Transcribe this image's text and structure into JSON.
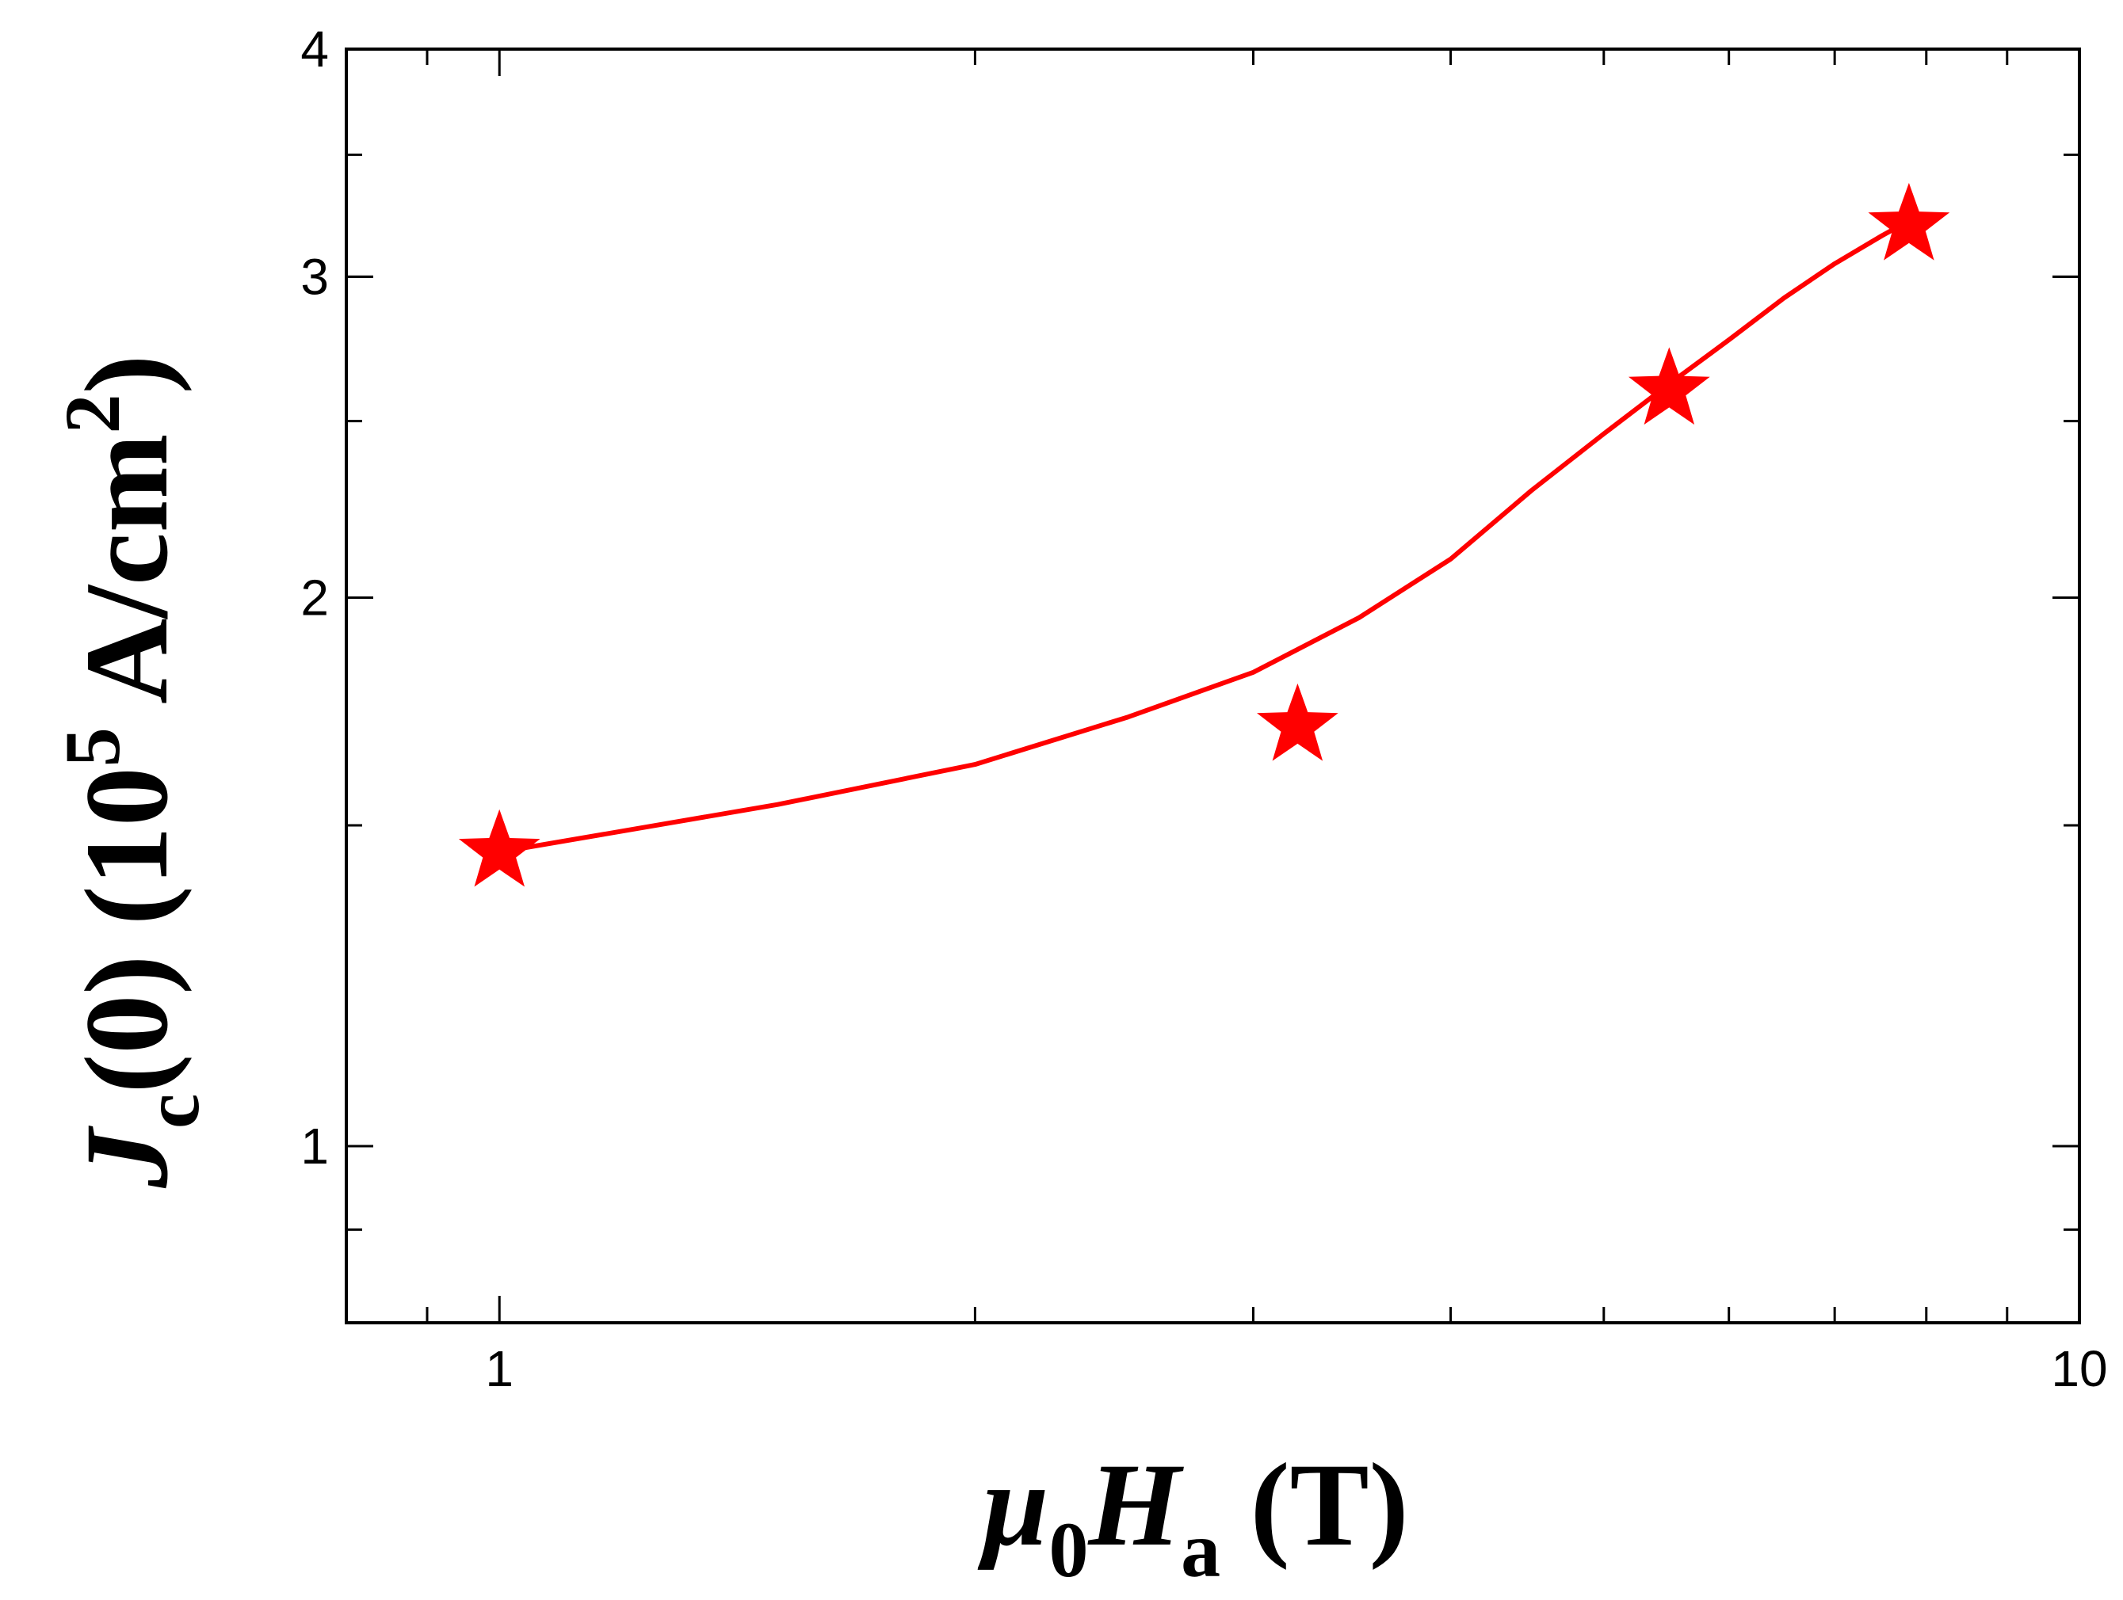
{
  "chart_data": {
    "type": "line",
    "x_scale": "log",
    "y_scale": "log",
    "xlim": [
      0.8,
      10
    ],
    "ylim": [
      0.8,
      4
    ],
    "x_ticks": [
      {
        "value": 1,
        "label": "1"
      },
      {
        "value": 10,
        "label": "10"
      }
    ],
    "y_ticks": [
      {
        "value": 1,
        "label": "1"
      },
      {
        "value": 2,
        "label": "2"
      },
      {
        "value": 3,
        "label": "3"
      },
      {
        "value": 4,
        "label": "4"
      }
    ],
    "xlabel": {
      "main": "μ",
      "sub0": "0",
      "italic": "H",
      "sub1": "a",
      "tail": " (T)"
    },
    "ylabel": {
      "italic": "J",
      "sub": "c",
      "middle": "(0)  (10",
      "sup1": "5",
      "unit": " A/cm",
      "sup2": "2",
      "end": ")"
    },
    "grid": false,
    "series": [
      {
        "marker": "star",
        "color": "#ff0000",
        "points": [
          {
            "x": 1.0,
            "y": 1.45
          },
          {
            "x": 3.2,
            "y": 1.7
          },
          {
            "x": 5.5,
            "y": 2.6
          },
          {
            "x": 7.8,
            "y": 3.2
          }
        ],
        "fit_curve": [
          {
            "x": 1.0,
            "y": 1.45
          },
          {
            "x": 1.5,
            "y": 1.54
          },
          {
            "x": 2.0,
            "y": 1.62
          },
          {
            "x": 2.5,
            "y": 1.72
          },
          {
            "x": 3.0,
            "y": 1.82
          },
          {
            "x": 3.5,
            "y": 1.95
          },
          {
            "x": 4.0,
            "y": 2.1
          },
          {
            "x": 4.5,
            "y": 2.29
          },
          {
            "x": 5.0,
            "y": 2.46
          },
          {
            "x": 5.5,
            "y": 2.62
          },
          {
            "x": 6.0,
            "y": 2.77
          },
          {
            "x": 6.5,
            "y": 2.92
          },
          {
            "x": 7.0,
            "y": 3.05
          },
          {
            "x": 7.5,
            "y": 3.16
          },
          {
            "x": 7.8,
            "y": 3.22
          }
        ]
      }
    ]
  }
}
